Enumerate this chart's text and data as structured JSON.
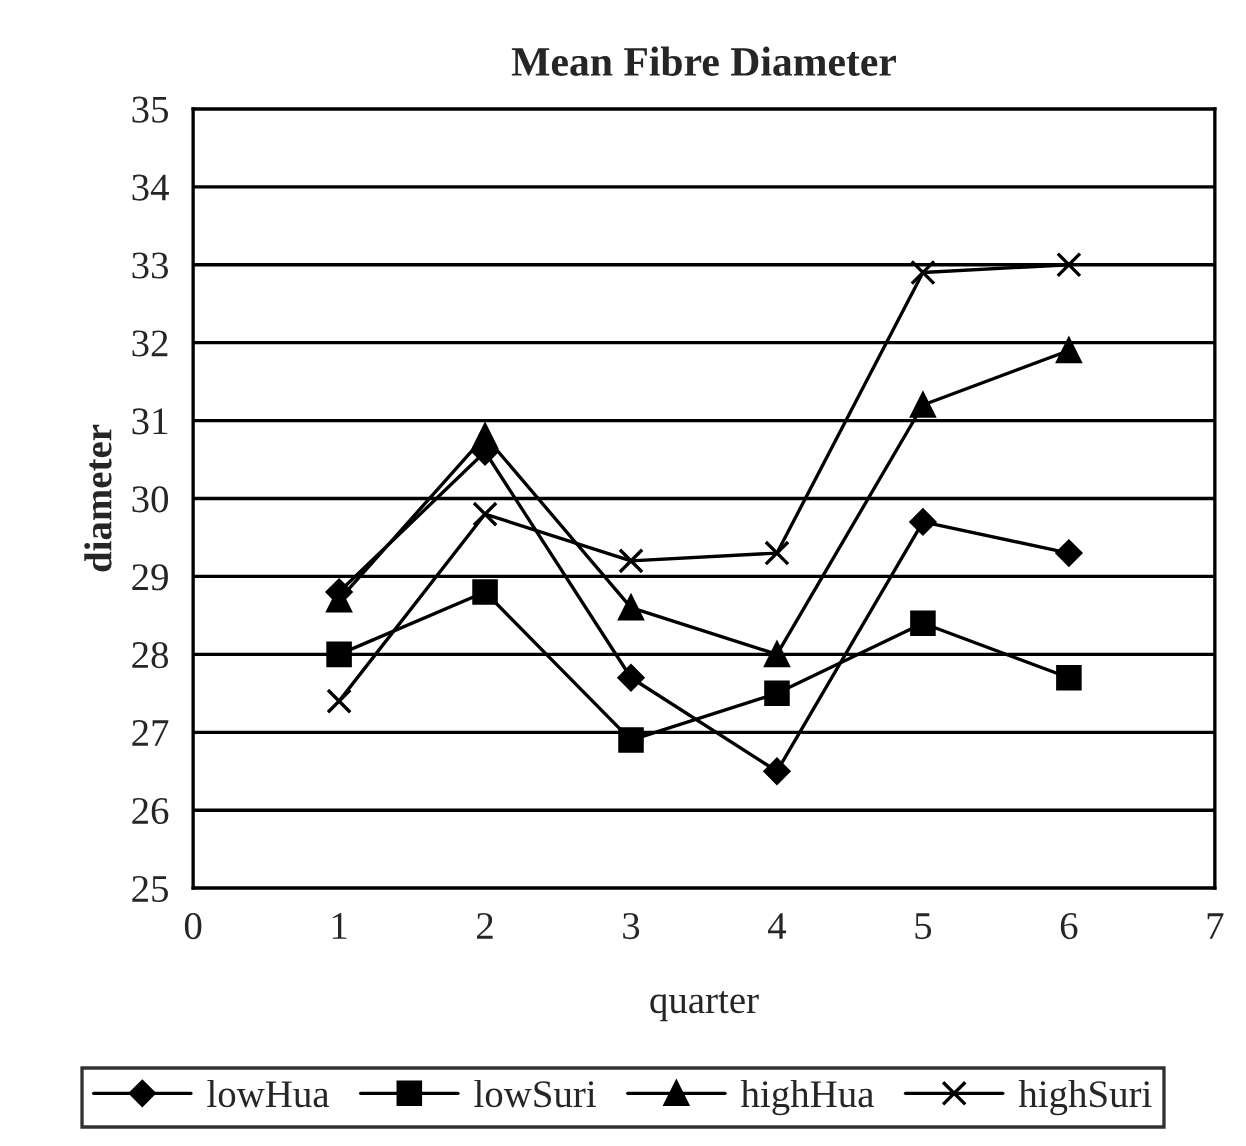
{
  "chart_data": {
    "type": "line",
    "title": "Mean Fibre Diameter",
    "xlabel": "quarter",
    "ylabel": "diameter",
    "x": [
      1,
      2,
      3,
      4,
      5,
      6
    ],
    "series": [
      {
        "name": "lowHua",
        "color": "#000000",
        "marker": "diamond",
        "values": [
          28.8,
          30.6,
          27.7,
          26.5,
          29.7,
          29.3
        ]
      },
      {
        "name": "lowSuri",
        "color": "#000000",
        "marker": "square",
        "values": [
          28.0,
          28.8,
          26.9,
          27.5,
          28.4,
          27.7
        ]
      },
      {
        "name": "highHua",
        "color": "#000000",
        "marker": "triangle",
        "values": [
          28.7,
          30.8,
          28.6,
          28.0,
          31.2,
          31.9
        ]
      },
      {
        "name": "highSuri",
        "color": "#000000",
        "marker": "cross",
        "values": [
          27.4,
          29.8,
          29.2,
          29.3,
          32.9,
          33.0
        ]
      }
    ],
    "xlim": [
      0,
      7
    ],
    "xticks": [
      0,
      1,
      2,
      3,
      4,
      5,
      6,
      7
    ],
    "ylim": [
      25,
      35
    ],
    "yticks": [
      25,
      26,
      27,
      28,
      29,
      30,
      31,
      32,
      33,
      34,
      35
    ],
    "grid": "y",
    "legend": "bottom",
    "line_style": "solid"
  }
}
